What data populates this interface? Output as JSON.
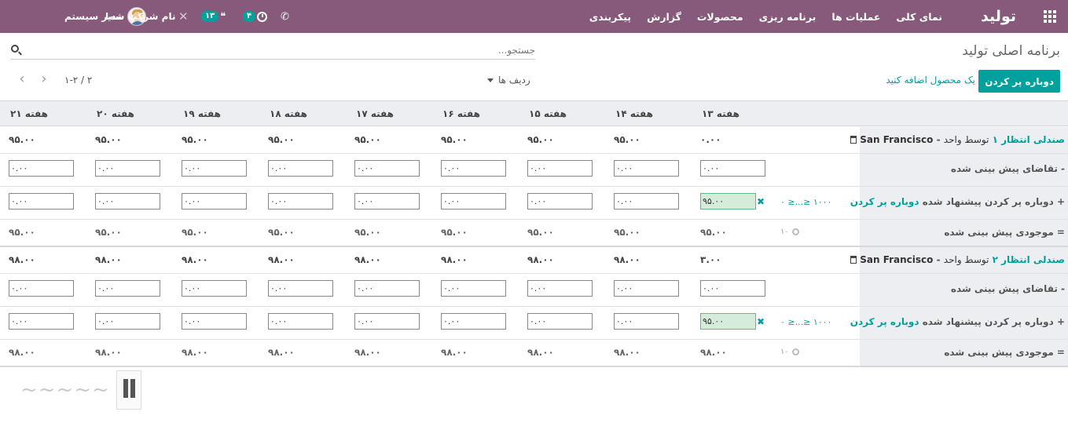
{
  "navbar": {
    "app_name": "تولید",
    "menu": [
      "نمای کلی",
      "عملیات ها",
      "برنامه ریزی",
      "محصولات",
      "گزارش",
      "پیکربندی"
    ],
    "user_name": "مدیر سیستم",
    "company_name": "نام شرکت شما",
    "chat_count": "۱۳",
    "activity_count": "۴",
    "icons": [
      "apps-grid-icon",
      "avatar",
      "close-icon",
      "chat-icon",
      "clock-icon",
      "phone-icon"
    ]
  },
  "control_panel": {
    "title": "برنامه اصلی تولید",
    "search_placeholder": "جستجو...",
    "replenish_button": "دوباره پر کردن",
    "add_product_link": "یک محصول اضافه کنید",
    "rows_dropdown": "ردیف ها",
    "pager": "۱-۲ / ۲",
    "prev_icon": "‹",
    "next_icon": "›"
  },
  "weeks": [
    "هفته ۱۳",
    "هفته ۱۴",
    "هفته ۱۵",
    "هفته ۱۶",
    "هفته ۱۷",
    "هفته ۱۸",
    "هفته ۱۹",
    "هفته ۲۰",
    "هفته ۲۱"
  ],
  "products": [
    {
      "name": "صندلی انتظار ۱",
      "unit_text": "توسط واحد",
      "warehouse": "San Francisco",
      "starting_inventory": [
        "۰.۰۰",
        "۹۵.۰۰",
        "۹۵.۰۰",
        "۹۵.۰۰",
        "۹۵.۰۰",
        "۹۵.۰۰",
        "۹۵.۰۰",
        "۹۵.۰۰",
        "۹۵.۰۰"
      ],
      "forecast_label": "- تقاضای پیش بینی شده",
      "forecast": [
        "۰.۰۰",
        "۰.۰۰",
        "۰.۰۰",
        "۰.۰۰",
        "۰.۰۰",
        "۰.۰۰",
        "۰.۰۰",
        "۰.۰۰",
        "۰.۰۰"
      ],
      "replenish_label": "+ دوباره پر کردن پیشنهاد شده",
      "replenish_link": "دوباره پر کردن",
      "replenish": [
        "۹۵.۰۰",
        "۰.۰۰",
        "۰.۰۰",
        "۰.۰۰",
        "۰.۰۰",
        "۰.۰۰",
        "۰.۰۰",
        "۰.۰۰",
        "۰.۰۰"
      ],
      "range_text": "۰ ≥...≥ ۱۰۰۰",
      "x_mark": "✖",
      "stock_label": "= موجودی پیش بینی شده",
      "safety_stock": "۱۰",
      "stock": [
        "۹۵.۰۰",
        "۹۵.۰۰",
        "۹۵.۰۰",
        "۹۵.۰۰",
        "۹۵.۰۰",
        "۹۵.۰۰",
        "۹۵.۰۰",
        "۹۵.۰۰",
        "۹۵.۰۰"
      ]
    },
    {
      "name": "صندلی انتظار ۲",
      "unit_text": "توسط واحد",
      "warehouse": "San Francisco",
      "starting_inventory": [
        "۳.۰۰",
        "۹۸.۰۰",
        "۹۸.۰۰",
        "۹۸.۰۰",
        "۹۸.۰۰",
        "۹۸.۰۰",
        "۹۸.۰۰",
        "۹۸.۰۰",
        "۹۸.۰۰"
      ],
      "forecast_label": "- تقاضای پیش بینی شده",
      "forecast": [
        "۰.۰۰",
        "۰.۰۰",
        "۰.۰۰",
        "۰.۰۰",
        "۰.۰۰",
        "۰.۰۰",
        "۰.۰۰",
        "۰.۰۰",
        "۰.۰۰"
      ],
      "replenish_label": "+ دوباره پر کردن پیشنهاد شده",
      "replenish_link": "دوباره پر کردن",
      "replenish": [
        "۹۵.۰۰",
        "۰.۰۰",
        "۰.۰۰",
        "۰.۰۰",
        "۰.۰۰",
        "۰.۰۰",
        "۰.۰۰",
        "۰.۰۰",
        "۰.۰۰"
      ],
      "range_text": "۰ ≥...≥ ۱۰۰۰",
      "x_mark": "✖",
      "stock_label": "= موجودی پیش بینی شده",
      "safety_stock": "۱۰",
      "stock": [
        "۹۸.۰۰",
        "۹۸.۰۰",
        "۹۸.۰۰",
        "۹۸.۰۰",
        "۹۸.۰۰",
        "۹۸.۰۰",
        "۹۸.۰۰",
        "۹۸.۰۰",
        "۹۸.۰۰"
      ]
    }
  ],
  "colors": {
    "navbar": "#875a7b",
    "accent": "#00a09d",
    "header_bg": "#eceef1",
    "suggested_cell": "#d4ecd9"
  }
}
